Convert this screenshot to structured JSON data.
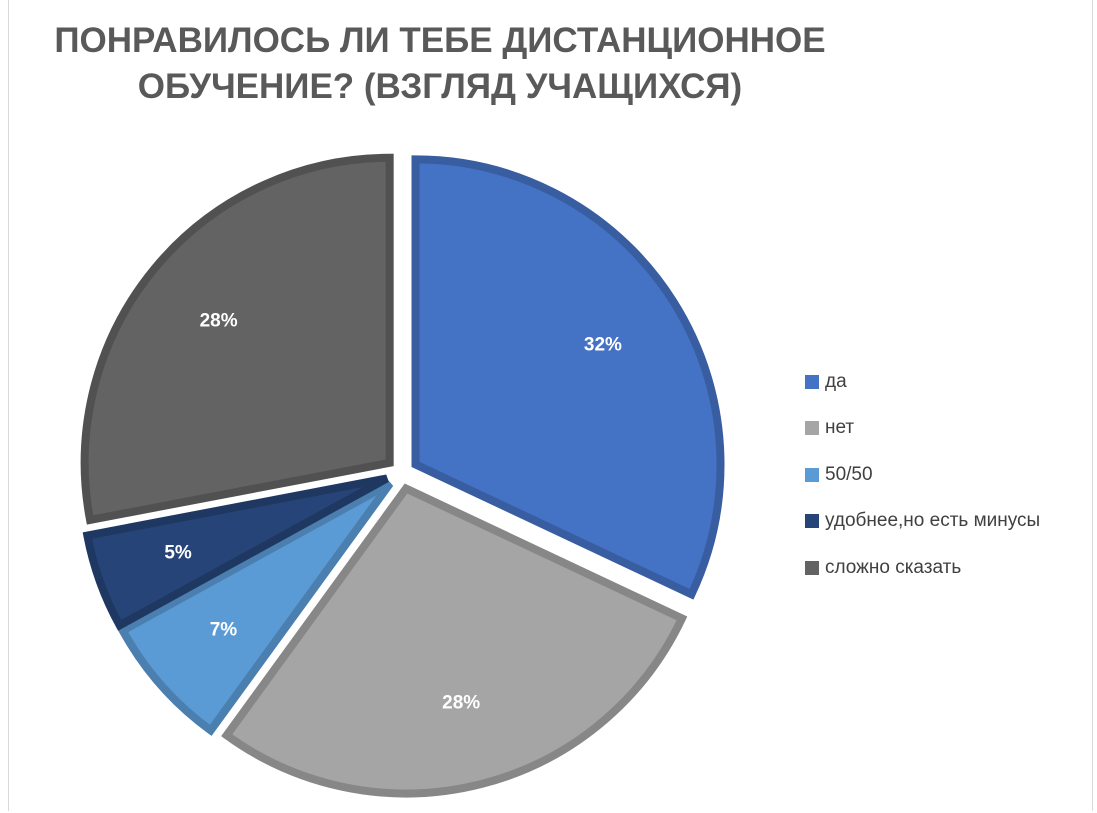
{
  "chart_data": {
    "type": "pie",
    "title_lines": [
      "ПОНРАВИЛОСЬ ЛИ ТЕБЕ  ДИСТАНЦИОННОЕ",
      "ОБУЧЕНИЕ? (ВЗГЛЯД УЧАЩИХСЯ)"
    ],
    "slices": [
      {
        "name": "да",
        "value": 32,
        "label": "32%",
        "color": "#4472C4"
      },
      {
        "name": "нет",
        "value": 28,
        "label": "28%",
        "color": "#A5A5A5"
      },
      {
        "name": "50/50",
        "value": 7,
        "label": "7%",
        "color": "#5B9BD5"
      },
      {
        "name": "удобнее,но есть минусы",
        "value": 5,
        "label": "5%",
        "color": "#264478"
      },
      {
        "name": "сложно сказать",
        "value": 28,
        "label": "28%",
        "color": "#636363"
      }
    ],
    "exploded": true,
    "legend_position": "right"
  }
}
